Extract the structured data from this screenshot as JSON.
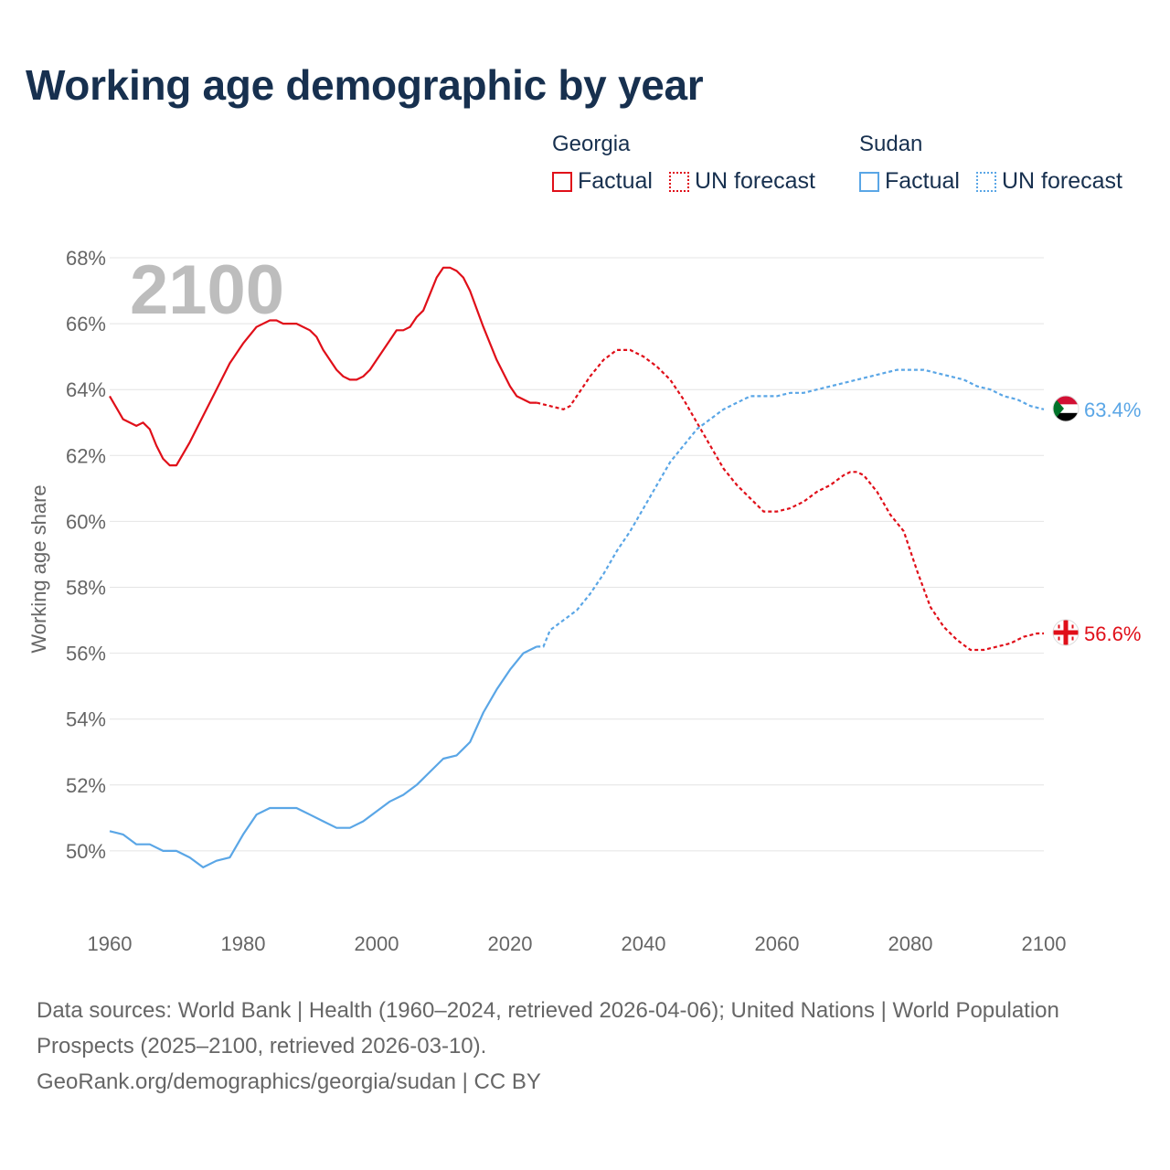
{
  "title": "Working age demographic by year",
  "legend": {
    "georgia": {
      "title": "Georgia",
      "factual": "Factual",
      "forecast": "UN forecast",
      "color": "#e00f19"
    },
    "sudan": {
      "title": "Sudan",
      "factual": "Factual",
      "forecast": "UN forecast",
      "color": "#5aa6e6"
    }
  },
  "footer": {
    "sources": "Data sources: World Bank | Health (1960–2024, retrieved 2026-04-06); United Nations | World Population Prospects (2025–2100, retrieved 2026-03-10).",
    "credit": "GeoRank.org/demographics/georgia/sudan | CC BY"
  },
  "chart_data": {
    "type": "line",
    "title": "Working age demographic by year",
    "xlabel": "",
    "ylabel": "Working age share",
    "year_watermark": "2100",
    "xlim": [
      1960,
      2100
    ],
    "ylim": [
      48,
      68
    ],
    "x_ticks": [
      1960,
      1980,
      2000,
      2020,
      2040,
      2060,
      2080,
      2100
    ],
    "y_ticks": [
      50,
      52,
      54,
      56,
      58,
      60,
      62,
      64,
      66,
      68
    ],
    "y_tick_format": "{v}%",
    "grid": true,
    "forecast_start": 2024,
    "series": [
      {
        "name": "Georgia",
        "color": "#e00f19",
        "end_label": "56.6%",
        "points": [
          [
            1960,
            63.8
          ],
          [
            1962,
            63.1
          ],
          [
            1964,
            62.9
          ],
          [
            1965,
            63.0
          ],
          [
            1966,
            62.8
          ],
          [
            1967,
            62.3
          ],
          [
            1968,
            61.9
          ],
          [
            1969,
            61.7
          ],
          [
            1970,
            61.7
          ],
          [
            1972,
            62.4
          ],
          [
            1974,
            63.2
          ],
          [
            1976,
            64.0
          ],
          [
            1978,
            64.8
          ],
          [
            1980,
            65.4
          ],
          [
            1982,
            65.9
          ],
          [
            1984,
            66.1
          ],
          [
            1985,
            66.1
          ],
          [
            1986,
            66.0
          ],
          [
            1988,
            66.0
          ],
          [
            1990,
            65.8
          ],
          [
            1991,
            65.6
          ],
          [
            1992,
            65.2
          ],
          [
            1994,
            64.6
          ],
          [
            1995,
            64.4
          ],
          [
            1996,
            64.3
          ],
          [
            1997,
            64.3
          ],
          [
            1998,
            64.4
          ],
          [
            1999,
            64.6
          ],
          [
            2000,
            64.9
          ],
          [
            2002,
            65.5
          ],
          [
            2003,
            65.8
          ],
          [
            2004,
            65.8
          ],
          [
            2005,
            65.9
          ],
          [
            2006,
            66.2
          ],
          [
            2007,
            66.4
          ],
          [
            2008,
            66.9
          ],
          [
            2009,
            67.4
          ],
          [
            2010,
            67.7
          ],
          [
            2011,
            67.7
          ],
          [
            2012,
            67.6
          ],
          [
            2013,
            67.4
          ],
          [
            2014,
            67.0
          ],
          [
            2016,
            65.9
          ],
          [
            2018,
            64.9
          ],
          [
            2020,
            64.1
          ],
          [
            2021,
            63.8
          ],
          [
            2022,
            63.7
          ],
          [
            2023,
            63.6
          ],
          [
            2024,
            63.6
          ],
          [
            2026,
            63.5
          ],
          [
            2028,
            63.4
          ],
          [
            2029,
            63.5
          ],
          [
            2030,
            63.8
          ],
          [
            2032,
            64.4
          ],
          [
            2034,
            64.9
          ],
          [
            2036,
            65.2
          ],
          [
            2038,
            65.2
          ],
          [
            2040,
            65.0
          ],
          [
            2042,
            64.7
          ],
          [
            2044,
            64.3
          ],
          [
            2046,
            63.7
          ],
          [
            2048,
            63.0
          ],
          [
            2050,
            62.3
          ],
          [
            2052,
            61.6
          ],
          [
            2054,
            61.1
          ],
          [
            2056,
            60.7
          ],
          [
            2058,
            60.3
          ],
          [
            2060,
            60.3
          ],
          [
            2062,
            60.4
          ],
          [
            2064,
            60.6
          ],
          [
            2066,
            60.9
          ],
          [
            2068,
            61.1
          ],
          [
            2070,
            61.4
          ],
          [
            2071,
            61.5
          ],
          [
            2072,
            61.5
          ],
          [
            2073,
            61.4
          ],
          [
            2075,
            60.9
          ],
          [
            2077,
            60.2
          ],
          [
            2079,
            59.7
          ],
          [
            2081,
            58.5
          ],
          [
            2083,
            57.4
          ],
          [
            2085,
            56.8
          ],
          [
            2087,
            56.4
          ],
          [
            2089,
            56.1
          ],
          [
            2091,
            56.1
          ],
          [
            2093,
            56.2
          ],
          [
            2095,
            56.3
          ],
          [
            2097,
            56.5
          ],
          [
            2099,
            56.6
          ],
          [
            2100,
            56.6
          ]
        ]
      },
      {
        "name": "Sudan",
        "color": "#5aa6e6",
        "end_label": "63.4%",
        "points": [
          [
            1960,
            50.6
          ],
          [
            1962,
            50.5
          ],
          [
            1964,
            50.2
          ],
          [
            1966,
            50.2
          ],
          [
            1968,
            50.0
          ],
          [
            1970,
            50.0
          ],
          [
            1972,
            49.8
          ],
          [
            1974,
            49.5
          ],
          [
            1976,
            49.7
          ],
          [
            1978,
            49.8
          ],
          [
            1980,
            50.5
          ],
          [
            1982,
            51.1
          ],
          [
            1984,
            51.3
          ],
          [
            1986,
            51.3
          ],
          [
            1988,
            51.3
          ],
          [
            1990,
            51.1
          ],
          [
            1992,
            50.9
          ],
          [
            1994,
            50.7
          ],
          [
            1996,
            50.7
          ],
          [
            1998,
            50.9
          ],
          [
            2000,
            51.2
          ],
          [
            2002,
            51.5
          ],
          [
            2004,
            51.7
          ],
          [
            2006,
            52.0
          ],
          [
            2008,
            52.4
          ],
          [
            2010,
            52.8
          ],
          [
            2012,
            52.9
          ],
          [
            2014,
            53.3
          ],
          [
            2016,
            54.2
          ],
          [
            2018,
            54.9
          ],
          [
            2020,
            55.5
          ],
          [
            2022,
            56.0
          ],
          [
            2024,
            56.2
          ],
          [
            2025,
            56.2
          ],
          [
            2026,
            56.7
          ],
          [
            2028,
            57.0
          ],
          [
            2030,
            57.3
          ],
          [
            2032,
            57.8
          ],
          [
            2034,
            58.4
          ],
          [
            2036,
            59.1
          ],
          [
            2038,
            59.7
          ],
          [
            2040,
            60.4
          ],
          [
            2042,
            61.1
          ],
          [
            2044,
            61.8
          ],
          [
            2046,
            62.3
          ],
          [
            2048,
            62.8
          ],
          [
            2050,
            63.1
          ],
          [
            2052,
            63.4
          ],
          [
            2054,
            63.6
          ],
          [
            2056,
            63.8
          ],
          [
            2058,
            63.8
          ],
          [
            2060,
            63.8
          ],
          [
            2062,
            63.9
          ],
          [
            2064,
            63.9
          ],
          [
            2066,
            64.0
          ],
          [
            2068,
            64.1
          ],
          [
            2070,
            64.2
          ],
          [
            2072,
            64.3
          ],
          [
            2074,
            64.4
          ],
          [
            2076,
            64.5
          ],
          [
            2078,
            64.6
          ],
          [
            2080,
            64.6
          ],
          [
            2082,
            64.6
          ],
          [
            2084,
            64.5
          ],
          [
            2086,
            64.4
          ],
          [
            2088,
            64.3
          ],
          [
            2090,
            64.1
          ],
          [
            2092,
            64.0
          ],
          [
            2094,
            63.8
          ],
          [
            2096,
            63.7
          ],
          [
            2098,
            63.5
          ],
          [
            2100,
            63.4
          ]
        ]
      }
    ]
  }
}
